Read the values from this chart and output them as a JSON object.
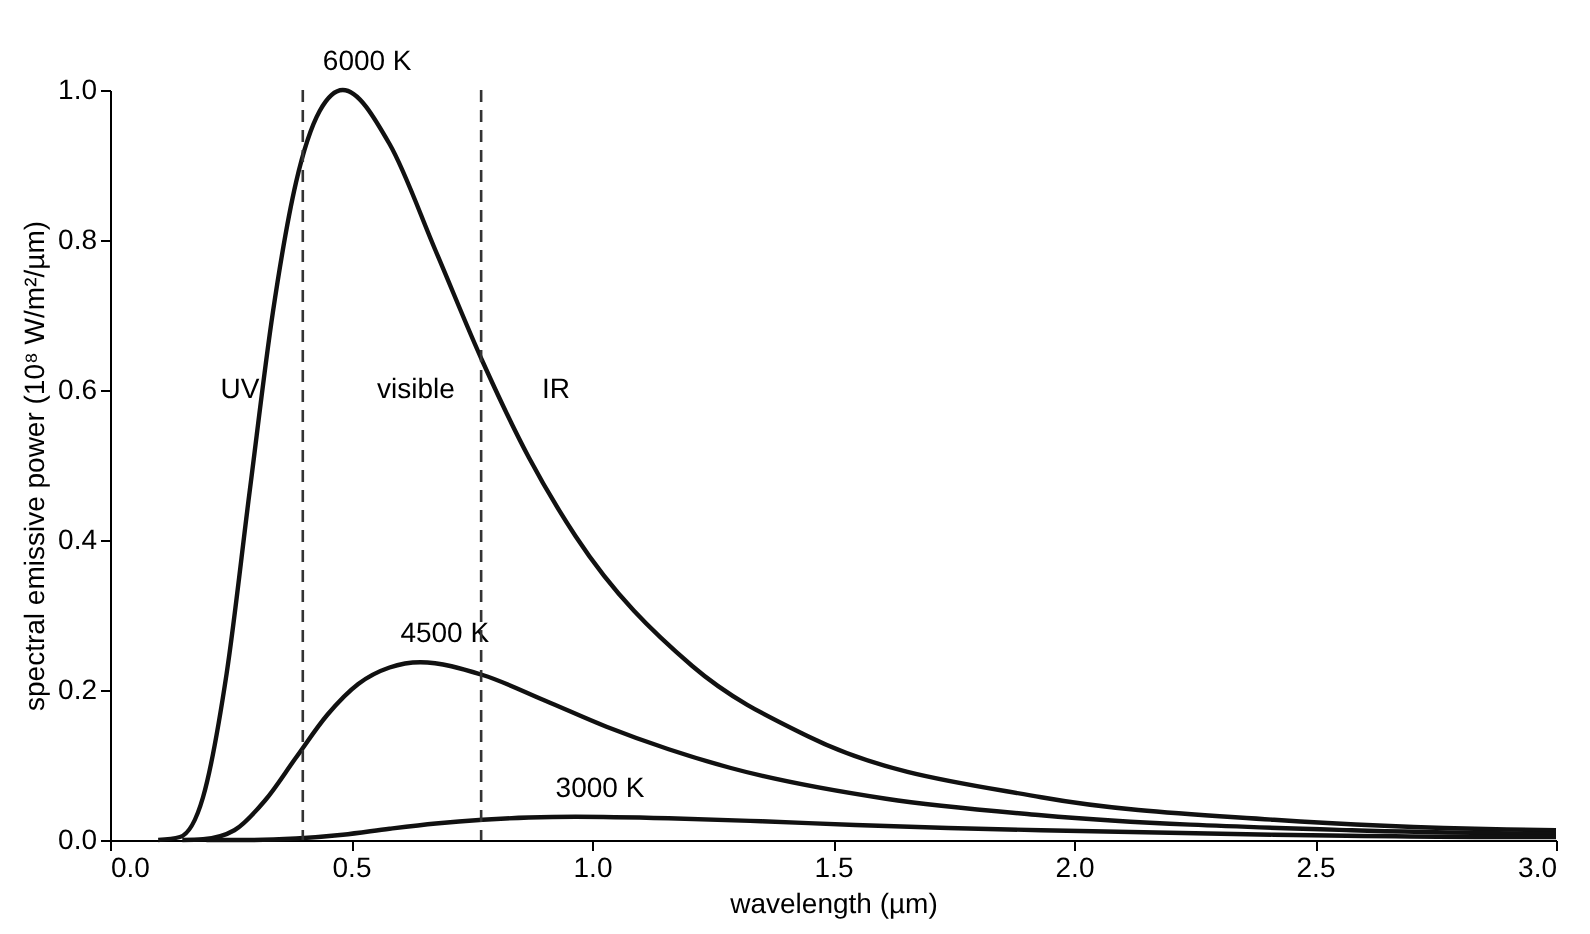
{
  "chart_data": {
    "type": "line",
    "xlabel": "wavelength (µm)",
    "ylabel": "spectral emissive power (10⁸ W/m²/µm)",
    "xlim": [
      0,
      3
    ],
    "ylim": [
      0,
      1
    ],
    "xticks": [
      {
        "value": 0,
        "label": "0.0"
      },
      {
        "value": 0.5,
        "label": "0.5"
      },
      {
        "value": 1,
        "label": "1.0"
      },
      {
        "value": 1.5,
        "label": "1.5"
      },
      {
        "value": 2,
        "label": "2.0"
      },
      {
        "value": 2.5,
        "label": "2.5"
      },
      {
        "value": 3,
        "label": "3.0"
      }
    ],
    "yticks": [
      {
        "value": 0,
        "label": "0.0"
      },
      {
        "value": 0.2,
        "label": "0.2"
      },
      {
        "value": 0.4,
        "label": "0.4"
      },
      {
        "value": 0.6,
        "label": "0.6"
      },
      {
        "value": 0.8,
        "label": "0.8"
      },
      {
        "value": 1,
        "label": "1.0"
      }
    ],
    "grid": false,
    "marker": "none",
    "line_style": "solid",
    "series": [
      {
        "name": "6000 K",
        "color": "#111111",
        "x": [
          0.1,
          0.145,
          0.193,
          0.242,
          0.29,
          0.338,
          0.386,
          0.435,
          0.483,
          0.58,
          0.676,
          0.773,
          0.869,
          0.966,
          1.208,
          1.449,
          1.932,
          2.415,
          2.898,
          3.0
        ],
        "values": [
          0,
          0.004,
          0.057,
          0.222,
          0.466,
          0.704,
          0.877,
          0.972,
          1.0,
          0.928,
          0.785,
          0.638,
          0.51,
          0.405,
          0.232,
          0.138,
          0.057,
          0.027,
          0.014,
          0.013
        ]
      },
      {
        "name": "4500 K",
        "color": "#111111",
        "x": [
          0.15,
          0.193,
          0.258,
          0.322,
          0.386,
          0.451,
          0.515,
          0.58,
          0.644,
          0.773,
          0.902,
          1.03,
          1.159,
          1.288,
          1.61,
          1.932,
          2.576,
          3.0
        ],
        "values": [
          0,
          0.001,
          0.013,
          0.053,
          0.11,
          0.167,
          0.208,
          0.23,
          0.237,
          0.22,
          0.186,
          0.151,
          0.121,
          0.096,
          0.055,
          0.033,
          0.013,
          0.008
        ]
      },
      {
        "name": "3000 K",
        "color": "#111111",
        "x": [
          0.2,
          0.29,
          0.386,
          0.483,
          0.58,
          0.676,
          0.773,
          0.869,
          0.966,
          1.159,
          1.352,
          1.546,
          1.739,
          1.932,
          2.415,
          2.898,
          3.0
        ],
        "values": [
          0,
          0,
          0.002,
          0.007,
          0.015,
          0.022,
          0.027,
          0.03,
          0.031,
          0.029,
          0.025,
          0.02,
          0.016,
          0.013,
          0.007,
          0.004,
          0.004
        ]
      }
    ],
    "ref_lines": [
      {
        "axis": "x",
        "value": 0.4,
        "color": "#333333",
        "line_style": "dashed"
      },
      {
        "axis": "x",
        "value": 0.77,
        "color": "#333333",
        "line_style": "dashed"
      }
    ],
    "annotations": [
      "UV",
      "visible",
      "IR"
    ]
  }
}
